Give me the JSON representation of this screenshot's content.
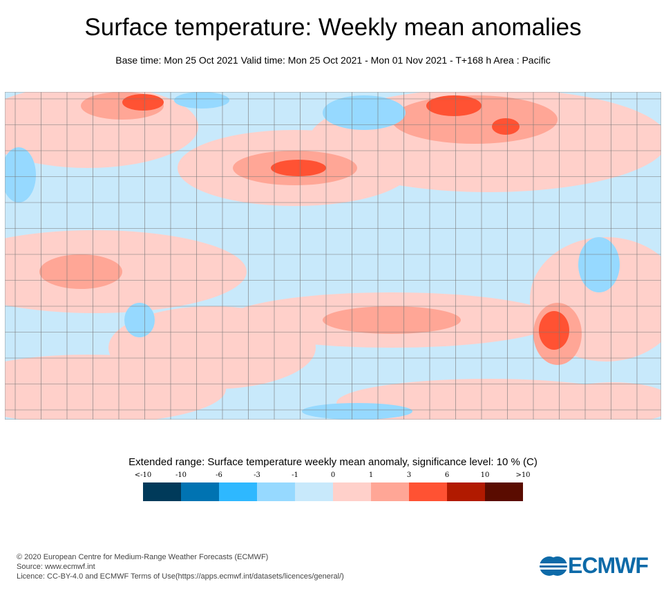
{
  "title": "Surface temperature: Weekly mean anomalies",
  "subtitle": "Base time: Mon 25 Oct 2021 Valid time: Mon 25 Oct 2021 - Mon 01 Nov 2021 - T+168 h Area : Pacific",
  "legend": {
    "title": "Extended range: Surface temperature weekly mean anomaly, significance level: 10 % (C)",
    "ticks": [
      "<-10",
      "-10",
      "-6",
      "-3",
      "-1",
      "0",
      "1",
      "3",
      "6",
      "10",
      ">10"
    ],
    "colors": [
      "#003a5a",
      "#0073b2",
      "#2eb8ff",
      "#96d9ff",
      "#c8e9fb",
      "#ffd0ca",
      "#ffa696",
      "#ff5233",
      "#b11a00",
      "#5a0c00"
    ]
  },
  "footer": {
    "copyright": "© 2020 European Centre for Medium-Range Weather Forecasts (ECMWF)",
    "source": "Source: www.ecmwf.int",
    "licence": "Licence: CC-BY-4.0 and ECMWF Terms of Use(https://apps.ecmwf.int/datasets/licences/general/)"
  },
  "logo": "ECMWF"
}
